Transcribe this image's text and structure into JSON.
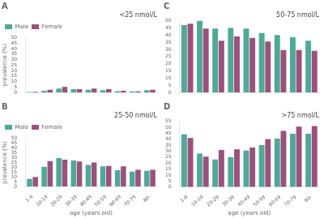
{
  "chart_data": [
    {
      "type": "bar",
      "title": "A",
      "subtitle": "<25 nmol/L",
      "categories": [
        "1-9",
        "10-19",
        "20-29",
        "30-39",
        "40-49",
        "50-59",
        "60-69",
        "70-79",
        "80-"
      ],
      "series": [
        {
          "name": "Male",
          "color": "#4aab97",
          "values": [
            0.4,
            1.5,
            3.5,
            3.0,
            2.5,
            2.0,
            1.2,
            1.0,
            2.0
          ]
        },
        {
          "name": "Female",
          "color": "#9e4f7a",
          "values": [
            0.5,
            2.5,
            5.0,
            3.0,
            3.5,
            3.0,
            1.5,
            1.0,
            2.5
          ]
        }
      ],
      "ylabel": "prevalence (%)",
      "ylim": [
        0,
        50
      ],
      "yticks": [
        0,
        5,
        10,
        15,
        20,
        25,
        30,
        35,
        40,
        45,
        50
      ],
      "grid": false,
      "legend": "upper left",
      "tick_labels": "y"
    },
    {
      "type": "bar",
      "title": "B",
      "subtitle": "25-50 nmol/L",
      "categories": [
        "1-9",
        "10-19",
        "20-29",
        "30-39",
        "40-49",
        "50-59",
        "60-69",
        "70-79",
        "80-"
      ],
      "series": [
        {
          "name": "Male",
          "color": "#4aab97",
          "values": [
            8.0,
            20.5,
            29.5,
            27.0,
            22.5,
            21.0,
            17.0,
            15.5,
            16.5
          ]
        },
        {
          "name": "Female",
          "color": "#9e4f7a",
          "values": [
            10.0,
            26.5,
            28.0,
            26.0,
            25.0,
            21.5,
            21.0,
            17.5,
            17.5
          ]
        }
      ],
      "xlabel": "age (years old)",
      "ylabel": "prevalence (%)",
      "ylim": [
        0,
        50
      ],
      "yticks": [
        0,
        5,
        10,
        15,
        20,
        25,
        30,
        35,
        40,
        45,
        50
      ],
      "grid": false,
      "legend": "upper left"
    },
    {
      "type": "bar",
      "title": "C",
      "subtitle": "50-75 nmol/L",
      "categories": [
        "1-9",
        "10-19",
        "20-29",
        "30-39",
        "40-49",
        "50-59",
        "60-69",
        "70-79",
        "80-"
      ],
      "series": [
        {
          "name": "Male",
          "color": "#4aab97",
          "values": [
            47.0,
            50.0,
            44.5,
            45.0,
            44.5,
            41.5,
            40.0,
            38.5,
            36.0
          ]
        },
        {
          "name": "Female",
          "color": "#9e4f7a",
          "values": [
            48.0,
            44.5,
            36.0,
            39.0,
            38.0,
            35.5,
            29.5,
            29.5,
            29.0
          ]
        }
      ],
      "ylim": [
        0,
        50
      ],
      "yticks": [
        0,
        5,
        10,
        15,
        20,
        25,
        30,
        35,
        40,
        45,
        50
      ],
      "grid": false,
      "legend": false,
      "tick_labels": "y"
    },
    {
      "type": "bar",
      "title": "D",
      "subtitle": ">75 nmol/L",
      "categories": [
        "1-9",
        "10-19",
        "20-29",
        "30-39",
        "40-49",
        "50-59",
        "60-69",
        "70-79",
        "80-"
      ],
      "series": [
        {
          "name": "Male",
          "color": "#4aab97",
          "values": [
            44.0,
            28.0,
            23.0,
            25.0,
            30.5,
            35.0,
            40.5,
            44.5,
            44.5
          ]
        },
        {
          "name": "Female",
          "color": "#9e4f7a",
          "values": [
            41.0,
            25.5,
            31.0,
            31.5,
            33.0,
            40.0,
            47.0,
            50.5,
            51.0
          ]
        }
      ],
      "xlabel": "age (years old)",
      "ylim": [
        0,
        55
      ],
      "yticks": [
        0,
        5,
        10,
        15,
        20,
        25,
        30,
        35,
        40,
        45,
        50,
        55
      ],
      "grid": false,
      "legend": false
    }
  ]
}
